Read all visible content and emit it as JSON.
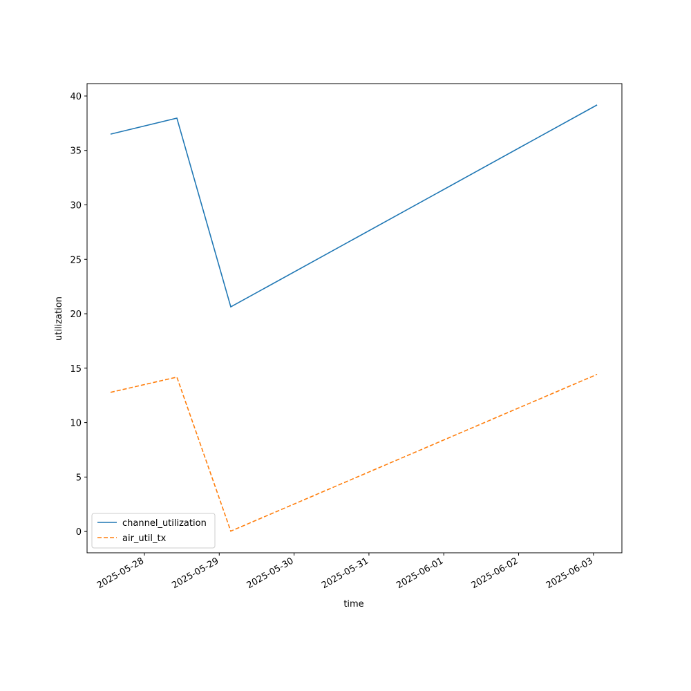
{
  "chart_data": {
    "type": "line",
    "x": [
      "2025-05-27T13:09",
      "2025-05-28T10:25",
      "2025-05-29T03:42",
      "2025-06-03T01:09"
    ],
    "series": [
      {
        "name": "channel_utilization",
        "color": "#1f77b4",
        "dash": "solid",
        "values": [
          36.5,
          37.97,
          20.63,
          39.18
        ]
      },
      {
        "name": "air_util_tx",
        "color": "#ff7f0e",
        "dash": "dashed",
        "values": [
          12.78,
          14.18,
          0.03,
          14.43
        ]
      }
    ],
    "xlabel": "time",
    "ylabel": "utilization",
    "xlim": [
      "2025-05-27T05:37",
      "2025-06-03T09:07"
    ],
    "xticks": [
      "2025-05-28",
      "2025-05-29",
      "2025-05-30",
      "2025-05-31",
      "2025-06-01",
      "2025-06-02",
      "2025-06-03"
    ],
    "ylim": [
      -1.96,
      41.14
    ],
    "yticks": [
      0,
      5,
      10,
      15,
      20,
      25,
      30,
      35,
      40
    ],
    "legend": "lower left",
    "grid": false
  }
}
